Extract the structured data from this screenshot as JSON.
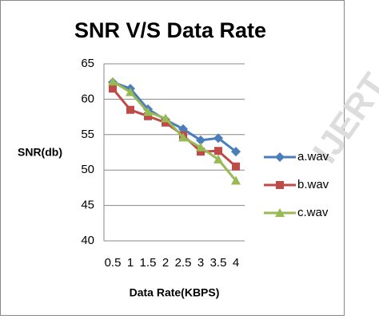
{
  "chart_data": {
    "type": "line",
    "title": "SNR V/S Data Rate",
    "x_label": "Data Rate(KBPS)",
    "y_label": "SNR(db)",
    "watermark": "IJERT",
    "categories": [
      "0.5",
      "1",
      "1.5",
      "2",
      "2.5",
      "3",
      "3.5",
      "4"
    ],
    "series": [
      {
        "name": "a.wav",
        "color": "#4a7ebb",
        "marker": "diamond",
        "values": [
          62.4,
          61.5,
          58.6,
          57.1,
          55.8,
          54.2,
          54.5,
          52.6
        ]
      },
      {
        "name": "b.wav",
        "color": "#be4b48",
        "marker": "square",
        "values": [
          61.5,
          58.5,
          57.6,
          56.7,
          54.9,
          52.6,
          52.7,
          50.5
        ]
      },
      {
        "name": "c.wav",
        "color": "#98b954",
        "marker": "triangle",
        "values": [
          62.5,
          61.0,
          58.2,
          57.3,
          54.6,
          53.2,
          51.5,
          48.5
        ]
      }
    ],
    "ylim": [
      40,
      65
    ],
    "yticks": [
      40,
      45,
      50,
      55,
      60,
      65
    ],
    "grid": true,
    "legend": "right"
  }
}
